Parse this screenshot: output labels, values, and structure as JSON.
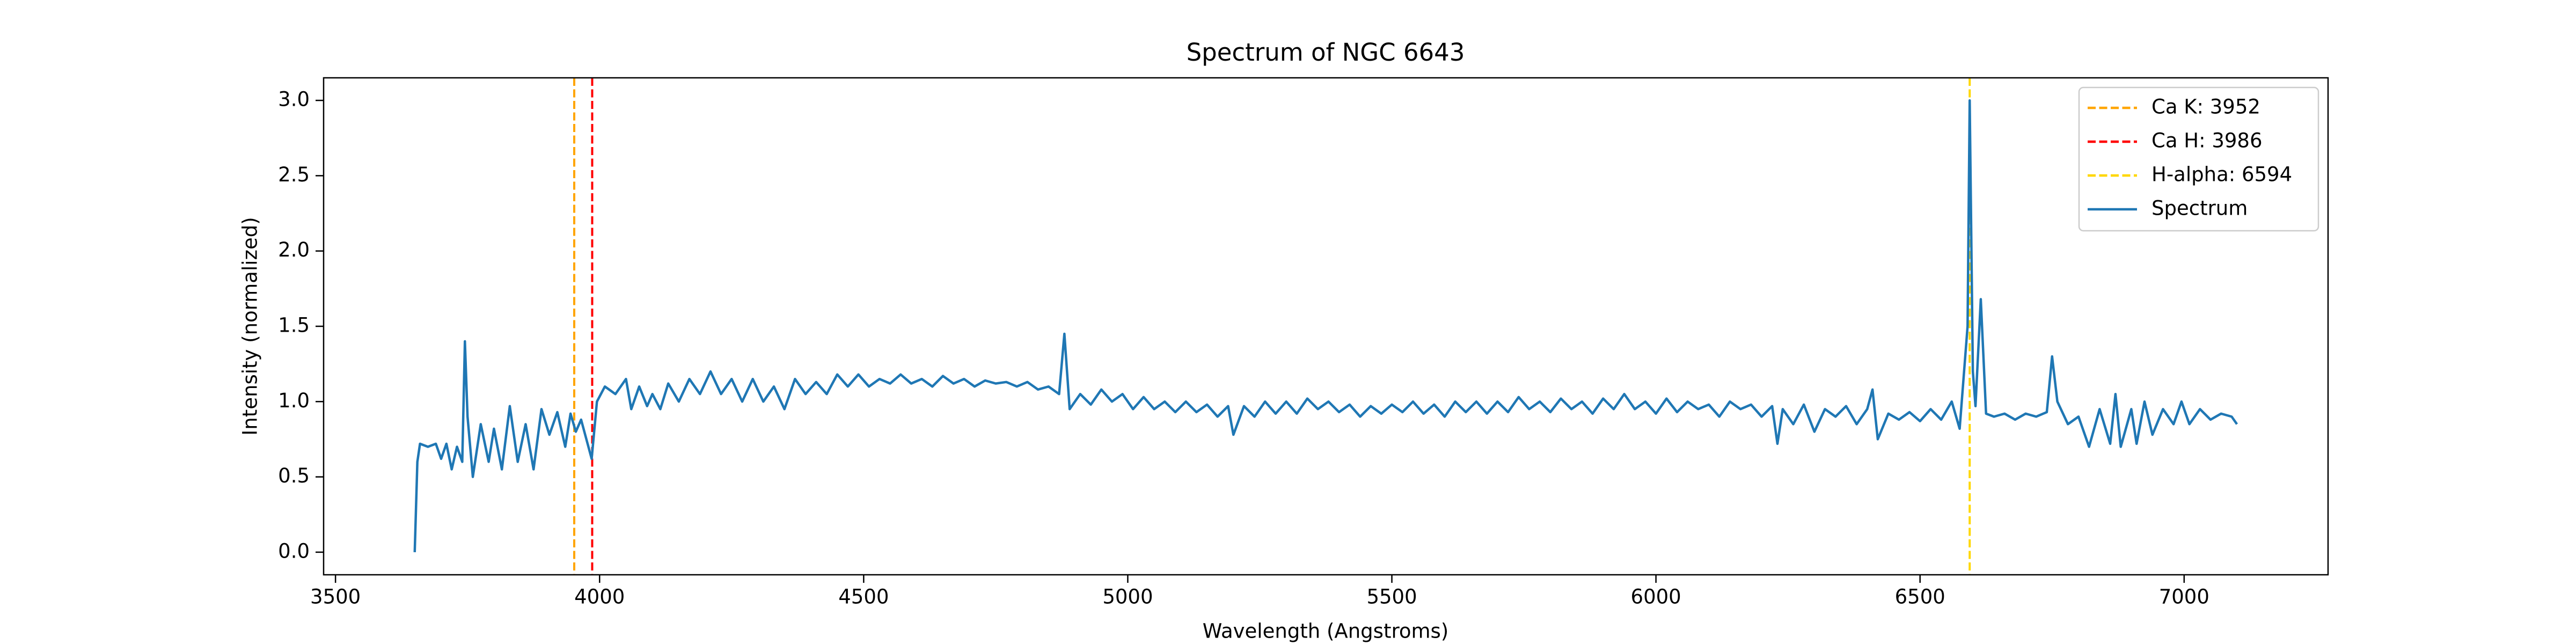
{
  "chart_data": {
    "type": "line",
    "title": "Spectrum of NGC 6643",
    "xlabel": "Wavelength (Angstroms)",
    "ylabel": "Intensity (normalized)",
    "xlim": [
      3477.5,
      7272.5
    ],
    "ylim": [
      -0.15,
      3.15
    ],
    "xticks": [
      3500,
      4000,
      4500,
      5000,
      5500,
      6000,
      6500,
      7000
    ],
    "yticks": [
      {
        "value": 0,
        "label": "0.0"
      },
      0.5,
      {
        "value": 1,
        "label": "1.0"
      },
      1.5,
      {
        "value": 2,
        "label": "2.0"
      },
      2.5,
      {
        "value": 3,
        "label": "3.0"
      }
    ],
    "grid": false,
    "legend": "upper right",
    "vlines": [
      {
        "label": "Ca K: 3952",
        "x": 3952,
        "color": "#ffa500"
      },
      {
        "label": "Ca H: 3986",
        "x": 3986,
        "color": "#ff0000"
      },
      {
        "label": "H-alpha: 6594",
        "x": 6594,
        "color": "#ffd700"
      }
    ],
    "x": [
      3650,
      3655,
      3660,
      3675,
      3690,
      3700,
      3710,
      3720,
      3730,
      3740,
      3745,
      3750,
      3760,
      3775,
      3790,
      3800,
      3815,
      3830,
      3845,
      3860,
      3875,
      3890,
      3905,
      3920,
      3935,
      3945,
      3955,
      3965,
      3975,
      3985,
      3995,
      4010,
      4030,
      4050,
      4060,
      4075,
      4090,
      4100,
      4115,
      4130,
      4150,
      4170,
      4190,
      4210,
      4230,
      4250,
      4270,
      4290,
      4310,
      4330,
      4350,
      4370,
      4390,
      4410,
      4430,
      4450,
      4470,
      4490,
      4510,
      4530,
      4550,
      4570,
      4590,
      4610,
      4630,
      4650,
      4670,
      4690,
      4710,
      4730,
      4750,
      4770,
      4790,
      4810,
      4830,
      4850,
      4870,
      4880,
      4890,
      4910,
      4930,
      4950,
      4970,
      4990,
      5010,
      5030,
      5050,
      5070,
      5090,
      5110,
      5130,
      5150,
      5170,
      5190,
      5200,
      5220,
      5240,
      5260,
      5280,
      5300,
      5320,
      5340,
      5360,
      5380,
      5400,
      5420,
      5440,
      5460,
      5480,
      5500,
      5520,
      5540,
      5560,
      5580,
      5600,
      5620,
      5640,
      5660,
      5680,
      5700,
      5720,
      5740,
      5760,
      5780,
      5800,
      5820,
      5840,
      5860,
      5880,
      5900,
      5920,
      5940,
      5960,
      5980,
      6000,
      6020,
      6040,
      6060,
      6080,
      6100,
      6120,
      6140,
      6160,
      6180,
      6200,
      6220,
      6230,
      6240,
      6260,
      6280,
      6300,
      6320,
      6340,
      6360,
      6380,
      6400,
      6410,
      6420,
      6440,
      6460,
      6480,
      6500,
      6520,
      6540,
      6560,
      6575,
      6590,
      6594,
      6600,
      6605,
      6615,
      6625,
      6640,
      6660,
      6680,
      6700,
      6720,
      6740,
      6750,
      6760,
      6780,
      6800,
      6820,
      6840,
      6860,
      6870,
      6880,
      6900,
      6910,
      6925,
      6940,
      6960,
      6980,
      6995,
      7010,
      7030,
      7050,
      7070,
      7090,
      7100
    ],
    "series": [
      {
        "name": "Spectrum",
        "color": "#1f77b4",
        "values": [
          0.0,
          0.6,
          0.72,
          0.7,
          0.72,
          0.62,
          0.72,
          0.55,
          0.7,
          0.6,
          1.4,
          0.9,
          0.5,
          0.85,
          0.6,
          0.82,
          0.55,
          0.97,
          0.6,
          0.85,
          0.55,
          0.95,
          0.78,
          0.93,
          0.7,
          0.92,
          0.8,
          0.88,
          0.75,
          0.62,
          1.0,
          1.1,
          1.05,
          1.15,
          0.95,
          1.1,
          0.97,
          1.05,
          0.95,
          1.12,
          1.0,
          1.15,
          1.05,
          1.2,
          1.05,
          1.15,
          1.0,
          1.15,
          1.0,
          1.1,
          0.95,
          1.15,
          1.05,
          1.13,
          1.05,
          1.18,
          1.1,
          1.18,
          1.1,
          1.15,
          1.12,
          1.18,
          1.12,
          1.15,
          1.1,
          1.17,
          1.12,
          1.15,
          1.1,
          1.14,
          1.12,
          1.13,
          1.1,
          1.13,
          1.08,
          1.1,
          1.05,
          1.45,
          0.95,
          1.05,
          0.98,
          1.08,
          1.0,
          1.05,
          0.95,
          1.03,
          0.95,
          1.0,
          0.93,
          1.0,
          0.93,
          0.98,
          0.9,
          0.97,
          0.78,
          0.97,
          0.9,
          1.0,
          0.92,
          1.0,
          0.92,
          1.02,
          0.95,
          1.0,
          0.93,
          0.98,
          0.9,
          0.97,
          0.92,
          0.98,
          0.93,
          1.0,
          0.92,
          0.98,
          0.9,
          1.0,
          0.93,
          1.0,
          0.92,
          1.0,
          0.93,
          1.03,
          0.95,
          1.0,
          0.93,
          1.02,
          0.95,
          1.0,
          0.92,
          1.02,
          0.95,
          1.05,
          0.95,
          1.0,
          0.92,
          1.02,
          0.93,
          1.0,
          0.95,
          0.98,
          0.9,
          1.0,
          0.95,
          0.98,
          0.9,
          0.97,
          0.72,
          0.95,
          0.85,
          0.98,
          0.8,
          0.95,
          0.9,
          0.97,
          0.85,
          0.95,
          1.08,
          0.75,
          0.92,
          0.88,
          0.93,
          0.87,
          0.95,
          0.88,
          1.0,
          0.82,
          1.5,
          3.0,
          1.2,
          0.97,
          1.68,
          0.92,
          0.9,
          0.92,
          0.88,
          0.92,
          0.9,
          0.93,
          1.3,
          1.0,
          0.85,
          0.9,
          0.7,
          0.95,
          0.72,
          1.05,
          0.7,
          0.95,
          0.72,
          1.0,
          0.78,
          0.95,
          0.85,
          1.0,
          0.85,
          0.95,
          0.88,
          0.92,
          0.9,
          0.85
        ]
      }
    ]
  }
}
